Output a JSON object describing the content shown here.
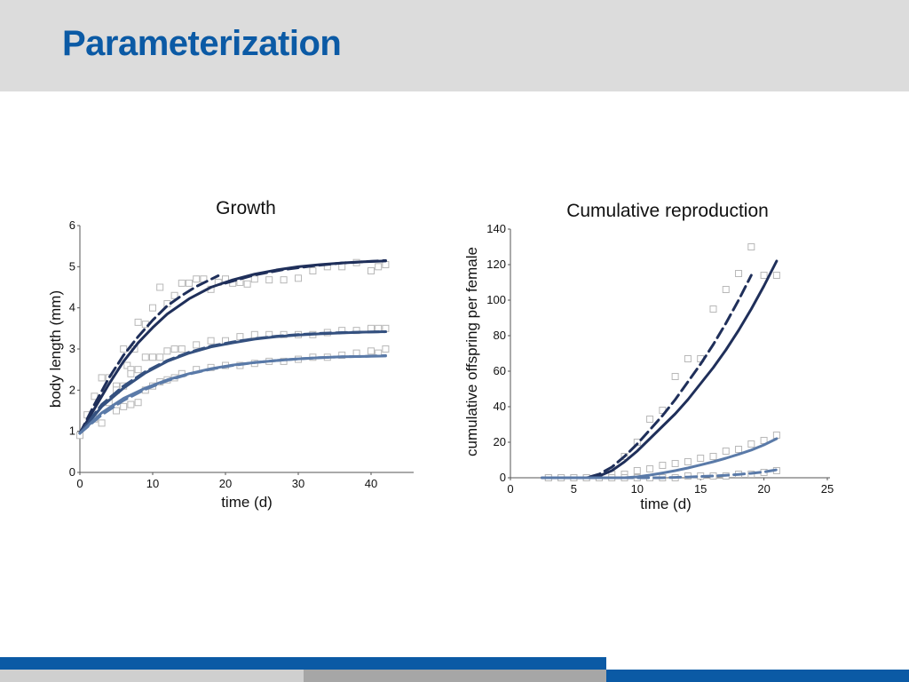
{
  "slide": {
    "title": "Parameterization"
  },
  "colors": {
    "accent": "#0b5aa5",
    "header_bg": "#dcdcdc",
    "series_dark": "#1f2f5a",
    "series_mid": "#34507f",
    "series_light": "#5a7aa8",
    "marker": "#b8b8b8"
  },
  "chart_data": [
    {
      "type": "line",
      "title": "Growth",
      "xlabel": "time (d)",
      "ylabel": "body length (mm)",
      "xlim": [
        0,
        46
      ],
      "ylim": [
        0,
        6
      ],
      "xticks": [
        0,
        10,
        20,
        30,
        40
      ],
      "yticks": [
        0,
        1,
        2,
        3,
        4,
        5,
        6
      ],
      "grid": false,
      "legend": "none",
      "series": [
        {
          "style": "solid",
          "color": "#1f2f5a",
          "x": [
            0,
            2,
            4,
            6,
            8,
            10,
            12,
            15,
            18,
            21,
            24,
            27,
            30,
            33,
            36,
            39,
            42
          ],
          "y": [
            0.95,
            1.55,
            2.15,
            2.7,
            3.15,
            3.52,
            3.85,
            4.22,
            4.5,
            4.68,
            4.82,
            4.92,
            5.0,
            5.05,
            5.09,
            5.12,
            5.14
          ]
        },
        {
          "style": "dashed",
          "color": "#1f2f5a",
          "x": [
            0,
            2,
            4,
            6,
            8,
            10,
            12,
            14,
            16,
            19
          ],
          "y": [
            0.95,
            1.65,
            2.3,
            2.85,
            3.3,
            3.7,
            4.05,
            4.3,
            4.52,
            4.78
          ]
        },
        {
          "style": "dashed",
          "color": "#1f2f5a",
          "x": [
            20,
            24,
            28,
            32,
            36,
            40,
            42
          ],
          "y": [
            4.6,
            4.8,
            4.93,
            5.02,
            5.09,
            5.13,
            5.15
          ]
        },
        {
          "style": "solid",
          "color": "#34507f",
          "x": [
            0,
            3,
            6,
            9,
            12,
            15,
            18,
            21,
            24,
            27,
            30,
            33,
            36,
            39,
            42
          ],
          "y": [
            0.95,
            1.6,
            2.05,
            2.42,
            2.7,
            2.9,
            3.05,
            3.15,
            3.24,
            3.3,
            3.34,
            3.37,
            3.39,
            3.41,
            3.42
          ]
        },
        {
          "style": "dashed",
          "color": "#34507f",
          "x": [
            0,
            3,
            6,
            9,
            12,
            15,
            18,
            21,
            24,
            27,
            30,
            33,
            36,
            39,
            42
          ],
          "y": [
            0.95,
            1.65,
            2.1,
            2.45,
            2.72,
            2.92,
            3.07,
            3.17,
            3.25,
            3.31,
            3.35,
            3.38,
            3.4,
            3.41,
            3.42
          ]
        },
        {
          "style": "solid",
          "color": "#5a7aa8",
          "x": [
            0,
            3,
            6,
            9,
            12,
            15,
            18,
            21,
            24,
            27,
            30,
            33,
            36,
            39,
            42
          ],
          "y": [
            0.95,
            1.45,
            1.8,
            2.05,
            2.25,
            2.4,
            2.52,
            2.61,
            2.67,
            2.72,
            2.76,
            2.79,
            2.81,
            2.82,
            2.83
          ]
        },
        {
          "style": "dashed",
          "color": "#5a7aa8",
          "x": [
            0,
            3,
            6,
            9,
            12,
            15,
            18,
            21,
            24,
            27,
            30,
            33,
            36,
            39,
            42
          ],
          "y": [
            0.95,
            1.4,
            1.75,
            2.02,
            2.23,
            2.39,
            2.51,
            2.6,
            2.67,
            2.72,
            2.76,
            2.79,
            2.81,
            2.82,
            2.84
          ]
        }
      ],
      "observations": {
        "x": [
          0,
          1,
          2,
          3,
          4,
          5,
          6,
          6.5,
          7,
          7.5,
          8,
          9,
          10,
          11,
          12,
          13,
          14,
          15,
          16,
          17,
          18,
          19,
          20,
          21,
          22,
          23,
          24,
          26,
          28,
          30,
          32,
          34,
          36,
          38,
          40,
          41,
          42,
          2,
          4,
          5,
          6,
          7,
          8,
          9,
          10,
          11,
          12,
          13,
          14,
          16,
          18,
          20,
          22,
          24,
          26,
          28,
          30,
          32,
          34,
          36,
          38,
          40,
          41,
          42,
          3,
          5,
          6,
          7,
          8,
          9,
          10,
          11,
          12,
          13,
          14,
          16,
          18,
          20,
          22,
          24,
          26,
          28,
          30,
          32,
          34,
          36,
          38,
          40,
          41,
          42
        ],
        "y": [
          0.9,
          1.4,
          1.85,
          2.3,
          2.3,
          2.1,
          3.0,
          2.6,
          2.5,
          3.0,
          3.65,
          3.6,
          4.0,
          4.5,
          4.1,
          4.3,
          4.6,
          4.6,
          4.7,
          4.7,
          4.45,
          4.62,
          4.7,
          4.6,
          4.62,
          4.58,
          4.7,
          4.68,
          4.68,
          4.72,
          4.9,
          5.0,
          5.0,
          5.1,
          4.9,
          5.0,
          5.05,
          1.3,
          1.7,
          2.0,
          2.1,
          2.4,
          2.5,
          2.8,
          2.8,
          2.8,
          2.95,
          3.0,
          3.0,
          3.1,
          3.2,
          3.2,
          3.3,
          3.35,
          3.35,
          3.35,
          3.35,
          3.35,
          3.4,
          3.45,
          3.45,
          3.5,
          3.5,
          3.5,
          1.2,
          1.5,
          1.6,
          1.65,
          1.7,
          2.0,
          2.1,
          2.2,
          2.25,
          2.3,
          2.4,
          2.5,
          2.55,
          2.6,
          2.6,
          2.65,
          2.7,
          2.7,
          2.75,
          2.8,
          2.8,
          2.85,
          2.9,
          2.95,
          2.9,
          3.0
        ]
      }
    },
    {
      "type": "line",
      "title": "Cumulative reproduction",
      "xlabel": "time (d)",
      "ylabel": "cumulative offspring per female",
      "xlim": [
        0,
        25
      ],
      "ylim": [
        0,
        140
      ],
      "xticks": [
        0,
        5,
        10,
        15,
        20,
        25
      ],
      "yticks": [
        0,
        20,
        40,
        60,
        80,
        100,
        120,
        140
      ],
      "grid": false,
      "legend": "none",
      "series": [
        {
          "style": "dashed",
          "color": "#1f2f5a",
          "x": [
            2.5,
            6,
            7,
            8,
            9,
            10,
            11,
            12,
            13,
            14,
            15,
            16,
            17,
            18,
            19
          ],
          "y": [
            0,
            0,
            2,
            6,
            12,
            19,
            27,
            35,
            44,
            54,
            64,
            75,
            87,
            100,
            114
          ]
        },
        {
          "style": "solid",
          "color": "#1f2f5a",
          "x": [
            2.5,
            6,
            7,
            8,
            9,
            10,
            11,
            12,
            13,
            14,
            15,
            16,
            17,
            18,
            19,
            20,
            21
          ],
          "y": [
            0,
            0,
            1,
            4,
            9,
            15,
            22,
            29,
            36,
            44,
            53,
            62,
            72,
            83,
            95,
            108,
            122
          ]
        },
        {
          "style": "solid",
          "color": "#5a7aa8",
          "x": [
            2.5,
            9,
            10,
            11,
            12,
            13,
            14,
            15,
            16,
            17,
            18,
            19,
            20,
            21
          ],
          "y": [
            0,
            0,
            0.5,
            1.5,
            2.7,
            4,
            5.5,
            7.2,
            9,
            11,
            13.2,
            15.6,
            18.5,
            22
          ]
        },
        {
          "style": "dashed",
          "color": "#5a7aa8",
          "x": [
            2.5,
            11,
            12,
            13,
            14,
            15,
            16,
            17,
            18,
            19,
            20,
            21
          ],
          "y": [
            0,
            0,
            0,
            0.2,
            0.4,
            0.7,
            1,
            1.4,
            1.9,
            2.5,
            3.3,
            4.5
          ]
        }
      ],
      "observations": {
        "x": [
          3,
          4,
          5,
          6,
          7,
          8,
          9,
          10,
          11,
          12,
          13,
          14,
          15,
          16,
          17,
          18,
          19,
          20,
          21,
          9,
          10,
          11,
          12,
          13,
          14,
          15,
          16,
          17,
          18,
          19,
          20,
          21,
          3,
          4,
          5,
          6,
          7,
          8,
          9,
          10,
          11,
          12,
          13,
          14,
          15,
          16,
          17,
          18,
          19,
          20,
          21
        ],
        "y": [
          0,
          0,
          0,
          0,
          0,
          2,
          12,
          20,
          33,
          38,
          57,
          67,
          67,
          95,
          106,
          115,
          130,
          114,
          114,
          2,
          4,
          5,
          7,
          8,
          9,
          11,
          12,
          15,
          16,
          19,
          21,
          24,
          0,
          0,
          0,
          0,
          0,
          0,
          0,
          0,
          0,
          0,
          0,
          1,
          1,
          1,
          1,
          2,
          2,
          3,
          4
        ]
      }
    }
  ]
}
